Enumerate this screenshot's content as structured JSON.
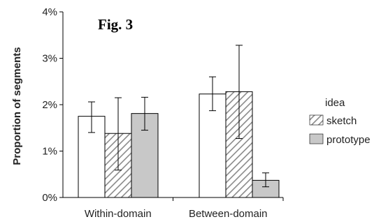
{
  "chart_data": {
    "type": "bar",
    "title": "Fig. 3",
    "ylabel": "Proportion of segments",
    "xlabel": "",
    "categories": [
      "Within-domain",
      "Between-domain"
    ],
    "ylim": [
      0,
      4
    ],
    "yticks": [
      "0%",
      "1%",
      "2%",
      "3%",
      "4%"
    ],
    "grid": false,
    "legend": {
      "title": "idea",
      "placement": "right"
    },
    "series": [
      {
        "name": "",
        "pattern": "white",
        "values": [
          1.75,
          2.23
        ],
        "err_low": [
          1.4,
          1.87
        ],
        "err_high": [
          2.06,
          2.6
        ]
      },
      {
        "name": "sketch",
        "pattern": "hatch",
        "values": [
          1.38,
          2.28
        ],
        "err_low": [
          0.59,
          1.27
        ],
        "err_high": [
          2.15,
          3.28
        ]
      },
      {
        "name": "prototype",
        "pattern": "gray",
        "values": [
          1.81,
          0.37
        ],
        "err_low": [
          1.45,
          0.23
        ],
        "err_high": [
          2.16,
          0.53
        ]
      }
    ],
    "colors": {
      "white": "#ffffff",
      "gray": "#c8c8c8",
      "hatch": "#8a8a8a",
      "stroke": "#000000"
    }
  }
}
